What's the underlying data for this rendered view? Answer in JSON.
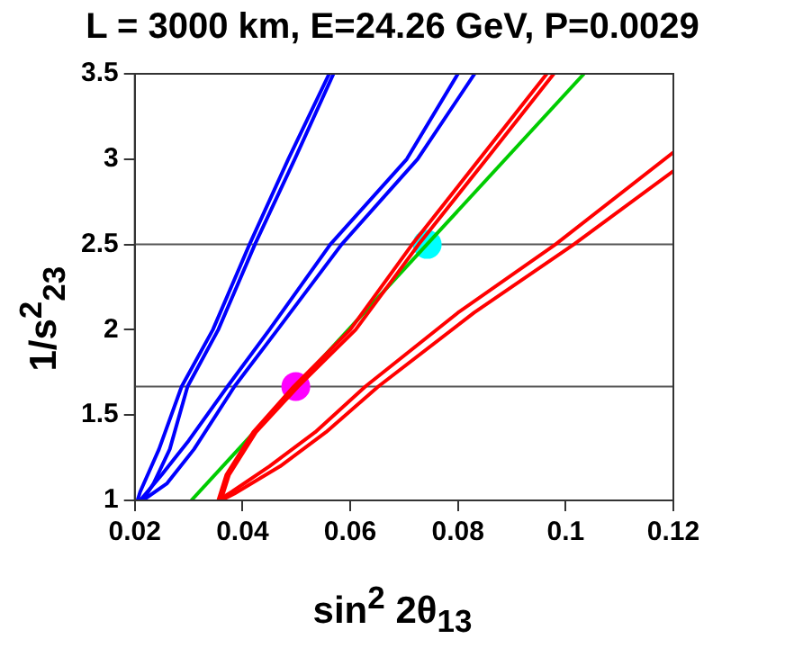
{
  "chart_data": {
    "type": "line",
    "title": "L = 3000 km, E=24.26 GeV, P=0.0029",
    "xlabel": "sin$^{2}$ 2θ$_{13}$",
    "ylabel": "1/s$^{2}$$_{23}$",
    "xlim": [
      0.02,
      0.12
    ],
    "xticks": [
      0.02,
      0.04,
      0.06,
      0.08,
      0.1,
      0.12
    ],
    "ylim": [
      1,
      3.5
    ],
    "yticks": [
      1,
      1.5,
      2,
      2.5,
      3,
      3.5
    ],
    "grid": false,
    "legend": false,
    "marker": "none",
    "line_style": "solid",
    "ref_lines": [
      {
        "axis": "y",
        "value": 2.5,
        "color": "#555555"
      },
      {
        "axis": "y",
        "value": 1.667,
        "color": "#555555"
      }
    ],
    "series": [
      {
        "color": "#0000ff",
        "x": [
          0.0561,
          0.0485,
          0.0413,
          0.0345,
          0.0287,
          0.0245,
          0.021,
          0.0205,
          0.0215,
          0.0235,
          0.0265,
          0.0298,
          0.0355,
          0.0423,
          0.0497,
          0.0569
        ],
        "values": [
          3.5,
          3.0,
          2.5,
          2.0,
          1.667,
          1.3,
          1.05,
          1.0,
          1.0,
          1.1,
          1.3,
          1.667,
          2.0,
          2.5,
          3.0,
          3.5
        ]
      },
      {
        "color": "#0000ff",
        "x": [
          0.08,
          0.0705,
          0.0563,
          0.045,
          0.0372,
          0.03,
          0.025,
          0.021,
          0.0215,
          0.026,
          0.031,
          0.0385,
          0.0465,
          0.0584,
          0.0725,
          0.0831
        ],
        "values": [
          3.5,
          3.0,
          2.5,
          2.0,
          1.667,
          1.35,
          1.15,
          1.0,
          1.0,
          1.1,
          1.3,
          1.667,
          2.0,
          2.5,
          3.0,
          3.5
        ]
      },
      {
        "color": "#ff0000",
        "x": [
          0.0965,
          0.084,
          0.0715,
          0.06,
          0.0495,
          0.042,
          0.037,
          0.0355,
          0.038,
          0.045,
          0.0535,
          0.0628,
          0.08,
          0.0981,
          0.12
        ],
        "values": [
          3.5,
          3.0,
          2.5,
          2.0,
          1.667,
          1.4,
          1.15,
          1.0,
          1.05,
          1.2,
          1.4,
          1.667,
          2.1,
          2.5,
          3.04
        ]
      },
      {
        "color": "#ff0000",
        "x": [
          0.0978,
          0.0853,
          0.0727,
          0.061,
          0.0503,
          0.0425,
          0.0375,
          0.036,
          0.0385,
          0.047,
          0.0555,
          0.0652,
          0.083,
          0.1015,
          0.12
        ],
        "values": [
          3.5,
          3.0,
          2.5,
          2.0,
          1.667,
          1.4,
          1.15,
          1.0,
          1.04,
          1.2,
          1.4,
          1.667,
          2.1,
          2.5,
          2.93
        ]
      },
      {
        "color": "#00cc00",
        "x": [
          0.0305,
          0.1034
        ],
        "values": [
          1.0,
          3.5
        ]
      },
      {
        "type": "scatter",
        "marker": "circle",
        "color": "#ff00ff",
        "x": [
          0.0499
        ],
        "values": [
          1.667
        ]
      },
      {
        "type": "scatter",
        "marker": "circle",
        "color": "#00ffff",
        "x": [
          0.0743
        ],
        "values": [
          2.5
        ]
      }
    ]
  }
}
